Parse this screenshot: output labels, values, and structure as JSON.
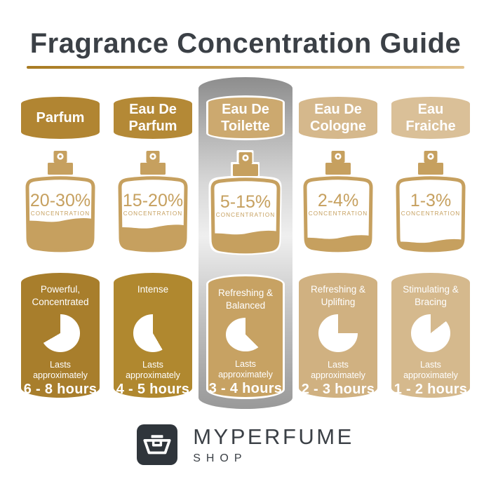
{
  "title": "Fragrance Concentration Guide",
  "theme": {
    "title_color": "#3B4046",
    "underline_from": "#A87B22",
    "underline_to": "#E2C28C",
    "bottle_gold": "#C6A05F",
    "banner_top": "#8D8D8D",
    "banner_mid": "#EFEFEF",
    "banner_bottom": "#999999",
    "logo_dark": "#2F353B"
  },
  "columns": [
    {
      "name": "Parfum",
      "concentration": "20-30%",
      "concentration_label": "CONCENTRATION",
      "fill_level": 0.42,
      "descriptor": "Powerful,\nConcentrated",
      "lasts_label": "Lasts approximately",
      "duration": "6 - 8 hours",
      "clock_gold_wedge": [
        240,
        360
      ],
      "colors": {
        "header": "#B18532",
        "card": "#A87E2C"
      },
      "highlighted": false
    },
    {
      "name": "Eau De\nParfum",
      "concentration": "15-20%",
      "concentration_label": "CONCENTRATION",
      "fill_level": 0.32,
      "descriptor": "Intense",
      "lasts_label": "Lasts approximately",
      "duration": "4 - 5 hours",
      "clock_gold_wedge": [
        0,
        150
      ],
      "colors": {
        "header": "#B48936",
        "card": "#B0882F"
      },
      "highlighted": false
    },
    {
      "name": "Eau De\nToilette",
      "concentration": "5-15%",
      "concentration_label": "CONCENTRATION",
      "fill_level": 0.25,
      "descriptor": "Refreshing &\nBalanced",
      "lasts_label": "Lasts approximately",
      "duration": "3 - 4 hours",
      "clock_gold_wedge": [
        0,
        135
      ],
      "colors": {
        "header": "#CCA96F",
        "card": "#C7A263"
      },
      "highlighted": true
    },
    {
      "name": "Eau De\nCologne",
      "concentration": "2-4%",
      "concentration_label": "CONCENTRATION",
      "fill_level": 0.16,
      "descriptor": "Refreshing &\nUplifting",
      "lasts_label": "Lasts approximately",
      "duration": "2 - 3 hours",
      "clock_gold_wedge": [
        0,
        90
      ],
      "colors": {
        "header": "#D5B88C",
        "card": "#D0B181"
      },
      "highlighted": false
    },
    {
      "name": "Eau\nFraiche",
      "concentration": "1-3%",
      "concentration_label": "CONCENTRATION",
      "fill_level": 0.1,
      "descriptor": "Stimulating &\nBracing",
      "lasts_label": "Lasts approximately",
      "duration": "1 - 2 hours",
      "clock_gold_wedge": [
        0,
        52
      ],
      "colors": {
        "header": "#DAC098",
        "card": "#D5B98D"
      },
      "highlighted": false
    }
  ],
  "footer": {
    "brand": "MYPERFUME",
    "sub": "SHOP"
  }
}
